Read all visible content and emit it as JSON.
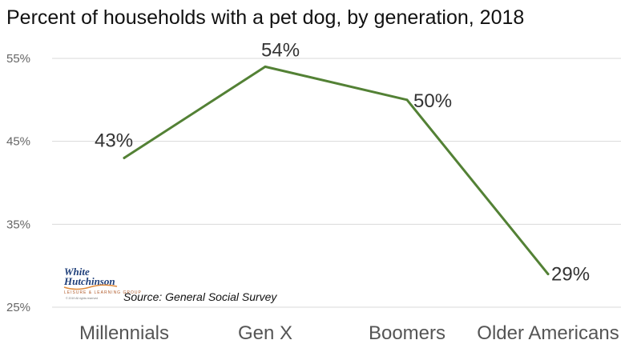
{
  "chart_data": {
    "type": "line",
    "title": "Percent of households with a pet dog, by generation, 2018",
    "categories": [
      "Millennials",
      "Gen X",
      "Boomers",
      "Older Americans"
    ],
    "series": [
      {
        "values": [
          43,
          54,
          50,
          29
        ],
        "labels": [
          "43%",
          "54%",
          "50%",
          "29%"
        ],
        "color": "#538135"
      }
    ],
    "y_ticks": [
      "55%",
      "45%",
      "35%",
      "25%"
    ],
    "y_tick_values": [
      55,
      45,
      35,
      25
    ],
    "ylim": [
      25,
      55
    ],
    "grid": true,
    "xlabel": "",
    "ylabel": "",
    "source": "Source: General Social Survey"
  },
  "logo": {
    "line1": "White",
    "line2": "Hutchinson",
    "tagline": "LEISURE & LEARNING GROUP",
    "copyright": "© 2019 All rights reserved"
  }
}
